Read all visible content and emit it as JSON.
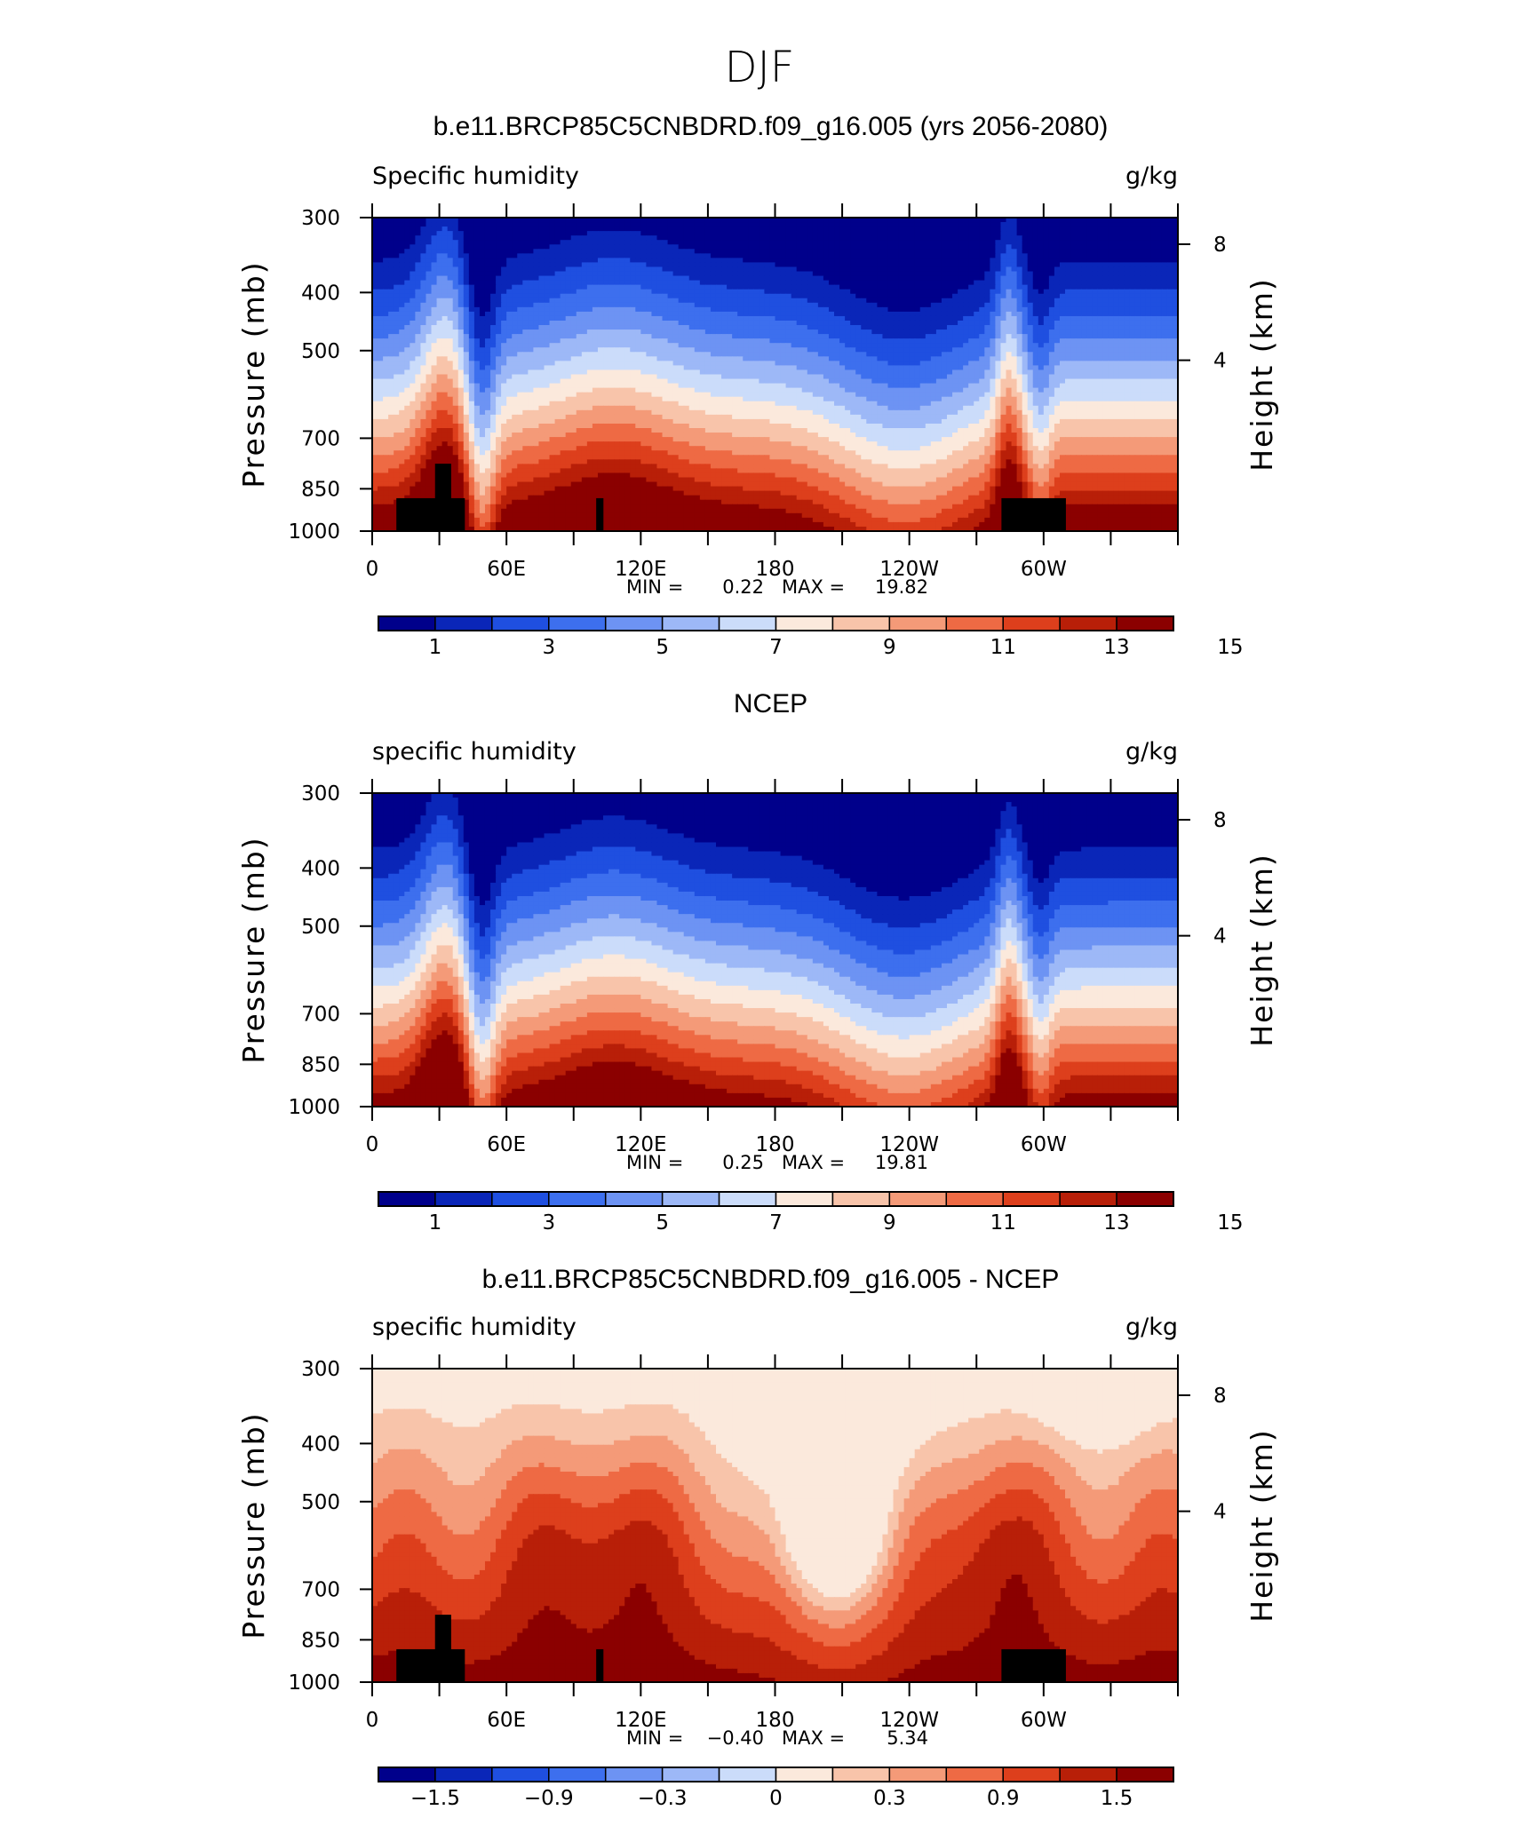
{
  "figure": {
    "title": "DJF"
  },
  "chart_data": [
    {
      "type": "heatmap",
      "title": "b.e11.BRCP85C5CNBDRD.f09_g16.005 (yrs 2056-2080)",
      "left_label": "Specific humidity",
      "right_label": "g/kg",
      "xlabel": "",
      "ylabel": "Pressure (mb)",
      "y2label": "Height (km)",
      "x_tick_labels": [
        "0",
        "60E",
        "120E",
        "180",
        "120W",
        "60W"
      ],
      "y_tick_labels": [
        "300",
        "400",
        "500",
        "700",
        "850",
        "1000"
      ],
      "y2_tick_labels": [
        "8",
        "4"
      ],
      "min_label": "MIN =",
      "min_value": "0.22",
      "max_label": "MAX =",
      "max_value": "19.82",
      "colorbar_labels": [
        "1",
        "3",
        "5",
        "7",
        "9",
        "11",
        "13",
        "15"
      ],
      "field": "model",
      "terrain": true
    },
    {
      "type": "heatmap",
      "title": "NCEP",
      "left_label": "specific humidity",
      "right_label": "g/kg",
      "xlabel": "",
      "ylabel": "Pressure (mb)",
      "y2label": "Height (km)",
      "x_tick_labels": [
        "0",
        "60E",
        "120E",
        "180",
        "120W",
        "60W"
      ],
      "y_tick_labels": [
        "300",
        "400",
        "500",
        "700",
        "850",
        "1000"
      ],
      "y2_tick_labels": [
        "8",
        "4"
      ],
      "min_label": "MIN =",
      "min_value": "0.25",
      "max_label": "MAX =",
      "max_value": "19.81",
      "colorbar_labels": [
        "1",
        "3",
        "5",
        "7",
        "9",
        "11",
        "13",
        "15"
      ],
      "field": "obs",
      "terrain": false
    },
    {
      "type": "heatmap",
      "title": "b.e11.BRCP85C5CNBDRD.f09_g16.005 - NCEP",
      "left_label": "specific humidity",
      "right_label": "g/kg",
      "xlabel": "",
      "ylabel": "Pressure (mb)",
      "y2label": "Height (km)",
      "x_tick_labels": [
        "0",
        "60E",
        "120E",
        "180",
        "120W",
        "60W"
      ],
      "y_tick_labels": [
        "300",
        "400",
        "500",
        "700",
        "850",
        "1000"
      ],
      "y2_tick_labels": [
        "8",
        "4"
      ],
      "min_label": "MIN =",
      "min_value": "−0.40",
      "max_label": "MAX =",
      "max_value": "5.34",
      "colorbar_labels": [
        "−1.5",
        "−0.9",
        "−0.3",
        "0",
        "0.3",
        "0.9",
        "1.5"
      ],
      "field": "diff",
      "terrain": true
    }
  ],
  "colormap": [
    "#00008b",
    "#0a26b8",
    "#1f4fe0",
    "#3d6fee",
    "#6d93f3",
    "#9db8f7",
    "#cbdcfa",
    "#fbe9dc",
    "#f8c4aa",
    "#f49a78",
    "#ee6a44",
    "#dd3f1c",
    "#b81f08",
    "#8b0000"
  ],
  "terrain_color": "#000000"
}
